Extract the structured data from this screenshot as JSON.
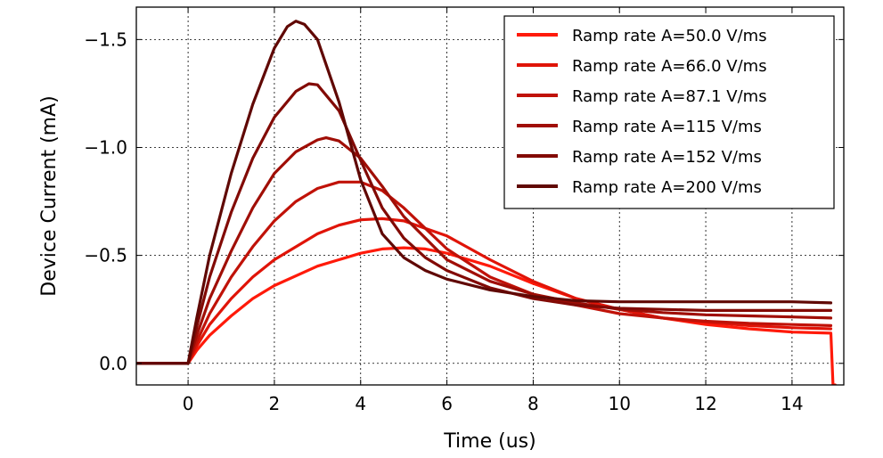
{
  "chart_data": {
    "type": "line",
    "xlabel": "Time (us)",
    "ylabel": "Device Current (mA)",
    "xlim": [
      -1.2,
      15.2
    ],
    "ylim": [
      0.1,
      -1.65
    ],
    "xticks": [
      0,
      2,
      4,
      6,
      8,
      10,
      12,
      14
    ],
    "yticks": [
      0.0,
      -0.5,
      -1.0,
      -1.5
    ],
    "xtick_labels": [
      "0",
      "2",
      "4",
      "6",
      "8",
      "10",
      "12",
      "14"
    ],
    "ytick_labels": [
      "0.0",
      "−0.5",
      "−1.0",
      "−1.5"
    ],
    "grid": true,
    "legend_position": "top-right",
    "series": [
      {
        "name": "Ramp rate A=50.0 V/ms",
        "color": "#ff1a0a",
        "x": [
          -1.2,
          0,
          0.2,
          0.5,
          1,
          1.5,
          2,
          3,
          4,
          4.5,
          5,
          5.5,
          6,
          7,
          8,
          9,
          10,
          11,
          12,
          13,
          14,
          14.9,
          14.95,
          15.0
        ],
        "y": [
          0,
          0,
          -0.06,
          -0.13,
          -0.22,
          -0.3,
          -0.36,
          -0.45,
          -0.51,
          -0.53,
          -0.535,
          -0.53,
          -0.51,
          -0.45,
          -0.37,
          -0.3,
          -0.25,
          -0.21,
          -0.18,
          -0.16,
          -0.145,
          -0.14,
          0.1,
          0.1
        ]
      },
      {
        "name": "Ramp rate A=66.0 V/ms",
        "color": "#e01408",
        "x": [
          -1.2,
          0,
          0.2,
          0.5,
          1,
          1.5,
          2,
          3,
          3.5,
          4,
          4.5,
          5,
          6,
          7,
          8,
          9,
          10,
          11,
          12,
          13,
          14,
          14.9
        ],
        "y": [
          0,
          0,
          -0.08,
          -0.18,
          -0.3,
          -0.4,
          -0.48,
          -0.6,
          -0.64,
          -0.665,
          -0.67,
          -0.66,
          -0.59,
          -0.48,
          -0.38,
          -0.3,
          -0.25,
          -0.21,
          -0.19,
          -0.175,
          -0.165,
          -0.16
        ]
      },
      {
        "name": "Ramp rate A=87.1 V/ms",
        "color": "#c01208",
        "x": [
          -1.2,
          0,
          0.2,
          0.5,
          1,
          1.5,
          2,
          2.5,
          3,
          3.5,
          4,
          4.5,
          5,
          6,
          7,
          8,
          9,
          10,
          11,
          12,
          13,
          14,
          14.9
        ],
        "y": [
          0,
          0,
          -0.1,
          -0.23,
          -0.4,
          -0.54,
          -0.66,
          -0.75,
          -0.81,
          -0.84,
          -0.84,
          -0.8,
          -0.72,
          -0.53,
          -0.4,
          -0.32,
          -0.27,
          -0.23,
          -0.21,
          -0.195,
          -0.185,
          -0.18,
          -0.175
        ]
      },
      {
        "name": "Ramp rate A=115 V/ms",
        "color": "#a00e06",
        "x": [
          -1.2,
          0,
          0.2,
          0.5,
          1,
          1.5,
          2,
          2.5,
          3,
          3.2,
          3.5,
          4,
          4.5,
          5,
          6,
          7,
          8,
          9,
          10,
          11,
          12,
          13,
          14,
          14.9
        ],
        "y": [
          0,
          0,
          -0.13,
          -0.3,
          -0.52,
          -0.72,
          -0.88,
          -0.98,
          -1.035,
          -1.045,
          -1.03,
          -0.95,
          -0.82,
          -0.68,
          -0.48,
          -0.38,
          -0.32,
          -0.28,
          -0.25,
          -0.235,
          -0.225,
          -0.22,
          -0.215,
          -0.21
        ]
      },
      {
        "name": "Ramp rate A=152 V/ms",
        "color": "#820a05",
        "x": [
          -1.2,
          0,
          0.2,
          0.5,
          1,
          1.5,
          2,
          2.5,
          2.8,
          3,
          3.5,
          4,
          4.5,
          5,
          5.5,
          6,
          7,
          8,
          9,
          10,
          11,
          12,
          13,
          14,
          14.9
        ],
        "y": [
          0,
          0,
          -0.17,
          -0.4,
          -0.7,
          -0.95,
          -1.14,
          -1.26,
          -1.295,
          -1.29,
          -1.17,
          -0.94,
          -0.72,
          -0.58,
          -0.49,
          -0.43,
          -0.35,
          -0.3,
          -0.27,
          -0.255,
          -0.25,
          -0.245,
          -0.245,
          -0.245,
          -0.245
        ]
      },
      {
        "name": "Ramp rate A=200 V/ms",
        "color": "#600804",
        "x": [
          -1.2,
          0,
          0.2,
          0.5,
          1,
          1.5,
          2,
          2.3,
          2.5,
          2.7,
          3,
          3.5,
          4,
          4.5,
          5,
          5.5,
          6,
          7,
          8,
          9,
          10,
          11,
          12,
          13,
          14,
          14.9
        ],
        "y": [
          0,
          0,
          -0.21,
          -0.5,
          -0.88,
          -1.2,
          -1.46,
          -1.56,
          -1.585,
          -1.57,
          -1.5,
          -1.21,
          -0.85,
          -0.6,
          -0.49,
          -0.43,
          -0.39,
          -0.34,
          -0.31,
          -0.29,
          -0.285,
          -0.285,
          -0.285,
          -0.285,
          -0.285,
          -0.28
        ]
      }
    ]
  }
}
